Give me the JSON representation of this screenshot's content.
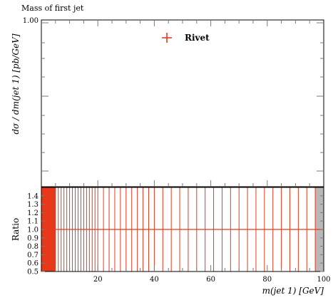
{
  "title": "Mass of first jet",
  "colors": {
    "series": "#e8391a",
    "ratio_band": "#b8b8b8",
    "axis": "#000000",
    "tick": "#7a7a7a"
  },
  "chart_data": [
    {
      "type": "scatter",
      "panel": "main",
      "title": "Mass of first jet",
      "ylabel": "dσ / dm(jet 1) [pb/GeV]",
      "yticks": [
        "1.00"
      ],
      "legend": {
        "position": "top-center",
        "entries": [
          {
            "label": "Rivet",
            "marker": "cross"
          }
        ]
      },
      "series": [
        {
          "name": "Rivet",
          "x": [],
          "y": []
        }
      ]
    },
    {
      "type": "line",
      "panel": "ratio",
      "ylabel": "Ratio",
      "xlabel": "m(jet 1) [GeV]",
      "xlim": [
        0,
        100
      ],
      "ylim": [
        0.5,
        1.5
      ],
      "xticks": [
        20,
        40,
        60,
        80,
        100
      ],
      "yticks": [
        "0.5",
        "0.6",
        "0.7",
        "0.8",
        "0.9",
        "1.0",
        "1.1",
        "1.2",
        "1.3",
        "1.4"
      ],
      "ratio_value": 1.0,
      "bin_edges": [
        1,
        1.5,
        2,
        2.5,
        3,
        3.5,
        4,
        4.5,
        5,
        6,
        7,
        8,
        9,
        10,
        11,
        12,
        13,
        14,
        15,
        16,
        17,
        18,
        19,
        20,
        22,
        24,
        26,
        28,
        30,
        32,
        34,
        36,
        38,
        40,
        43,
        46,
        49,
        52,
        55,
        58,
        61,
        64,
        67,
        70,
        73,
        76,
        79,
        82,
        85,
        88,
        91,
        94,
        97
      ]
    }
  ]
}
